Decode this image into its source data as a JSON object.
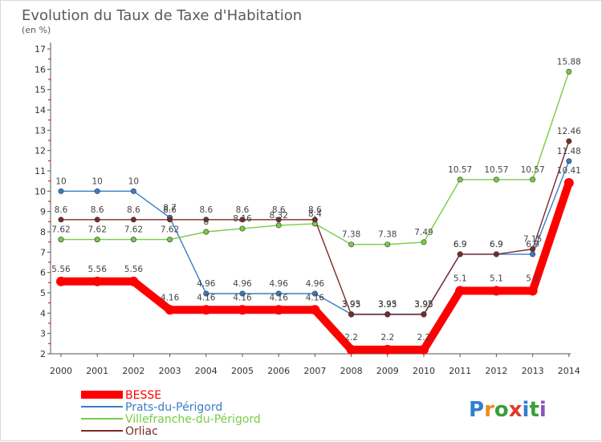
{
  "chart_data": {
    "type": "line",
    "title": "Evolution du Taux de Taxe d'Habitation",
    "unit_label": "(en %)",
    "x": [
      "2000",
      "2001",
      "2002",
      "2003",
      "2004",
      "2005",
      "2006",
      "2007",
      "2008",
      "2009",
      "2010",
      "2011",
      "2012",
      "2013",
      "2014"
    ],
    "ylim": [
      2,
      17
    ],
    "yticks": [
      "2",
      "3",
      "4",
      "5",
      "6",
      "7",
      "8",
      "9",
      "10",
      "11",
      "12",
      "13",
      "14",
      "15",
      "16",
      "17"
    ],
    "grid": false,
    "legend_position": "bottom-left",
    "series": [
      {
        "name": "BESSE",
        "color": "#ff0000",
        "values": [
          5.56,
          5.56,
          5.56,
          4.16,
          4.16,
          4.16,
          4.16,
          4.16,
          2.2,
          2.2,
          2.2,
          5.1,
          5.1,
          5.1,
          10.41
        ],
        "labels": [
          "5.56",
          "5.56",
          "5.56",
          "4.16",
          "4.16",
          "4.16",
          "4.16",
          "4.16",
          "2.2",
          "2.2",
          "2.2",
          "5.1",
          "5.1",
          "5.1",
          "10.41"
        ]
      },
      {
        "name": "Prats-du-Périgord",
        "color": "#3a7cc7",
        "values": [
          10,
          10,
          10,
          8.7,
          4.96,
          4.96,
          4.96,
          4.96,
          3.95,
          3.95,
          3.95,
          6.9,
          6.9,
          6.9,
          11.48
        ],
        "labels": [
          "10",
          "10",
          "10",
          "8.7",
          "4.96",
          "4.96",
          "4.96",
          "4.96",
          "3.95",
          "3.95",
          "3.95",
          "6.9",
          "6.9",
          "6.9",
          "11.48"
        ]
      },
      {
        "name": "Villefranche-du-Périgord",
        "color": "#77cc44",
        "values": [
          7.62,
          7.62,
          7.62,
          7.62,
          8,
          8.16,
          8.32,
          8.4,
          7.38,
          7.38,
          7.49,
          10.57,
          10.57,
          10.57,
          15.88
        ],
        "labels": [
          "7.62",
          "7.62",
          "7.62",
          "7.62",
          "8",
          "8.16",
          "8.32",
          "8.4",
          "7.38",
          "7.38",
          "7.49",
          "10.57",
          "10.57",
          "10.57",
          "15.88"
        ]
      },
      {
        "name": "Orliac",
        "color": "#7b2a2a",
        "values": [
          8.6,
          8.6,
          8.6,
          8.6,
          8.6,
          8.6,
          8.6,
          8.6,
          3.93,
          3.93,
          3.93,
          6.9,
          6.9,
          7.15,
          12.46
        ],
        "labels": [
          "8.6",
          "8.6",
          "8.6",
          "8.6",
          "8.6",
          "8.6",
          "8.6",
          "8.6",
          "3.93",
          "3.93",
          "3.93",
          "6.9",
          "6.9",
          "7.15",
          "12.46"
        ]
      }
    ]
  },
  "brand": {
    "name": "Proxiti",
    "letters": [
      "P",
      "r",
      "o",
      "x",
      "i",
      "t",
      "i"
    ],
    "letter_colors": [
      "#2f7fd0",
      "#f08a1c",
      "#3a9e3a",
      "#e23a2a",
      "#2f7fd0",
      "#3a9e3a",
      "#8a55b5"
    ]
  }
}
